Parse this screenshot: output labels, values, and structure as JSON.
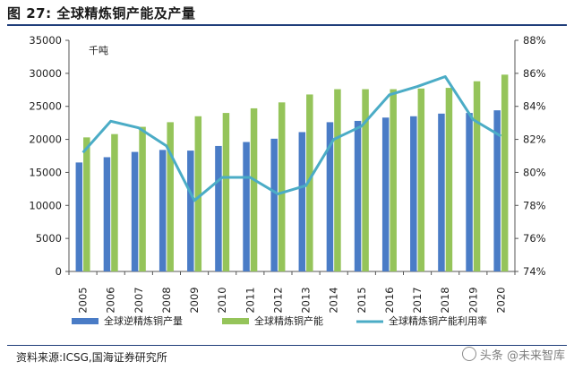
{
  "header": {
    "title": "图 27:  全球精炼铜产能及产量"
  },
  "footer": {
    "source": "资料来源:ICSG,国海证券研究所",
    "watermark": "头条 @未来智库"
  },
  "chart_data": {
    "type": "bar",
    "unit_label": "千吨",
    "categories": [
      "2005",
      "2006",
      "2007",
      "2008",
      "2009",
      "2010",
      "2011",
      "2012",
      "2013",
      "2014",
      "2015",
      "2016",
      "2017",
      "2018",
      "2019",
      "2020"
    ],
    "series": [
      {
        "name": "全球逆精炼铜产量",
        "kind": "bar",
        "axis": "left",
        "color": "#4a7cc6",
        "values": [
          16500,
          17300,
          18100,
          18400,
          18300,
          19000,
          19600,
          20100,
          21100,
          22600,
          22800,
          23300,
          23500,
          23900,
          24000,
          24400
        ]
      },
      {
        "name": "全球精炼铜产能",
        "kind": "bar",
        "axis": "left",
        "color": "#95c45a",
        "values": [
          20300,
          20800,
          21900,
          22600,
          23500,
          24000,
          24700,
          25600,
          26800,
          27600,
          27600,
          27600,
          27700,
          27800,
          28800,
          29800
        ]
      },
      {
        "name": "全球精炼铜产能利用率",
        "kind": "line",
        "axis": "right",
        "color": "#4bacc6",
        "values": [
          81.2,
          83.1,
          82.7,
          81.6,
          78.3,
          79.7,
          79.7,
          78.7,
          79.2,
          82.0,
          82.8,
          84.7,
          85.2,
          85.8,
          83.2,
          82.2
        ]
      }
    ],
    "y_left": {
      "min": 0,
      "max": 35000,
      "step": 5000
    },
    "y_right": {
      "min": 74,
      "max": 88,
      "step": 2,
      "suffix": "%"
    },
    "legend_position": "bottom"
  }
}
